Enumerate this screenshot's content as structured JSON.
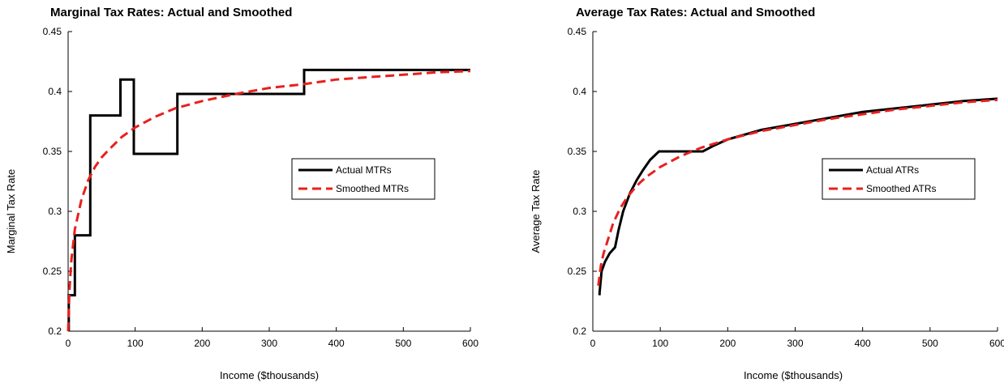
{
  "chart_data": [
    {
      "type": "line",
      "title": "Marginal Tax Rates: Actual and Smoothed",
      "xlabel": "Income ($thousands)",
      "ylabel": "Marginal Tax Rate",
      "xlim": [
        0,
        600
      ],
      "ylim": [
        0.2,
        0.45
      ],
      "xticks": [
        "0",
        "100",
        "200",
        "300",
        "400",
        "500",
        "600"
      ],
      "yticks": [
        "0.2",
        "0.25",
        "0.3",
        "0.35",
        "0.4",
        "0.45"
      ],
      "grid": false,
      "legend_position": "right-middle",
      "series": [
        {
          "name": "Actual MTRs",
          "color": "#000000",
          "style": "solid",
          "x": [
            1,
            1,
            10,
            10,
            33,
            33,
            78,
            78,
            98,
            98,
            163,
            163,
            352,
            352,
            600
          ],
          "y": [
            0.2,
            0.23,
            0.23,
            0.28,
            0.28,
            0.38,
            0.38,
            0.41,
            0.41,
            0.348,
            0.348,
            0.398,
            0.398,
            0.418,
            0.418
          ]
        },
        {
          "name": "Smoothed MTRs",
          "color": "#e8201e",
          "style": "dashed",
          "x": [
            0,
            2,
            5,
            10,
            20,
            30,
            40,
            50,
            60,
            80,
            100,
            130,
            160,
            200,
            250,
            300,
            350,
            400,
            450,
            500,
            550,
            600
          ],
          "y": [
            0.2,
            0.235,
            0.26,
            0.285,
            0.31,
            0.326,
            0.337,
            0.345,
            0.351,
            0.362,
            0.37,
            0.379,
            0.386,
            0.392,
            0.398,
            0.403,
            0.406,
            0.41,
            0.412,
            0.414,
            0.416,
            0.417
          ]
        }
      ]
    },
    {
      "type": "line",
      "title": "Average Tax Rates: Actual and Smoothed",
      "xlabel": "Income ($thousands)",
      "ylabel": "Average Tax Rate",
      "xlim": [
        0,
        600
      ],
      "ylim": [
        0.2,
        0.45
      ],
      "xticks": [
        "0",
        "100",
        "200",
        "300",
        "400",
        "500",
        "600"
      ],
      "yticks": [
        "0.2",
        "0.25",
        "0.3",
        "0.35",
        "0.4",
        "0.45"
      ],
      "grid": false,
      "legend_position": "right-middle",
      "series": [
        {
          "name": "Actual ATRs",
          "color": "#000000",
          "style": "solid",
          "x": [
            10,
            10,
            13,
            18,
            25,
            33,
            38,
            45,
            55,
            65,
            75,
            85,
            98,
            120,
            140,
            163,
            180,
            200,
            250,
            300,
            350,
            400,
            450,
            500,
            550,
            600
          ],
          "y": [
            0.23,
            0.232,
            0.25,
            0.258,
            0.265,
            0.27,
            0.284,
            0.3,
            0.315,
            0.326,
            0.335,
            0.343,
            0.35,
            0.35,
            0.35,
            0.35,
            0.355,
            0.36,
            0.368,
            0.373,
            0.378,
            0.383,
            0.386,
            0.389,
            0.392,
            0.394
          ]
        },
        {
          "name": "Smoothed ATRs",
          "color": "#e8201e",
          "style": "dashed",
          "x": [
            8,
            12,
            16,
            20,
            30,
            40,
            50,
            60,
            70,
            80,
            100,
            130,
            160,
            200,
            250,
            300,
            350,
            400,
            450,
            500,
            550,
            600
          ],
          "y": [
            0.238,
            0.255,
            0.265,
            0.272,
            0.29,
            0.302,
            0.311,
            0.318,
            0.324,
            0.329,
            0.337,
            0.346,
            0.353,
            0.36,
            0.367,
            0.372,
            0.377,
            0.381,
            0.385,
            0.388,
            0.391,
            0.393
          ]
        }
      ]
    }
  ]
}
